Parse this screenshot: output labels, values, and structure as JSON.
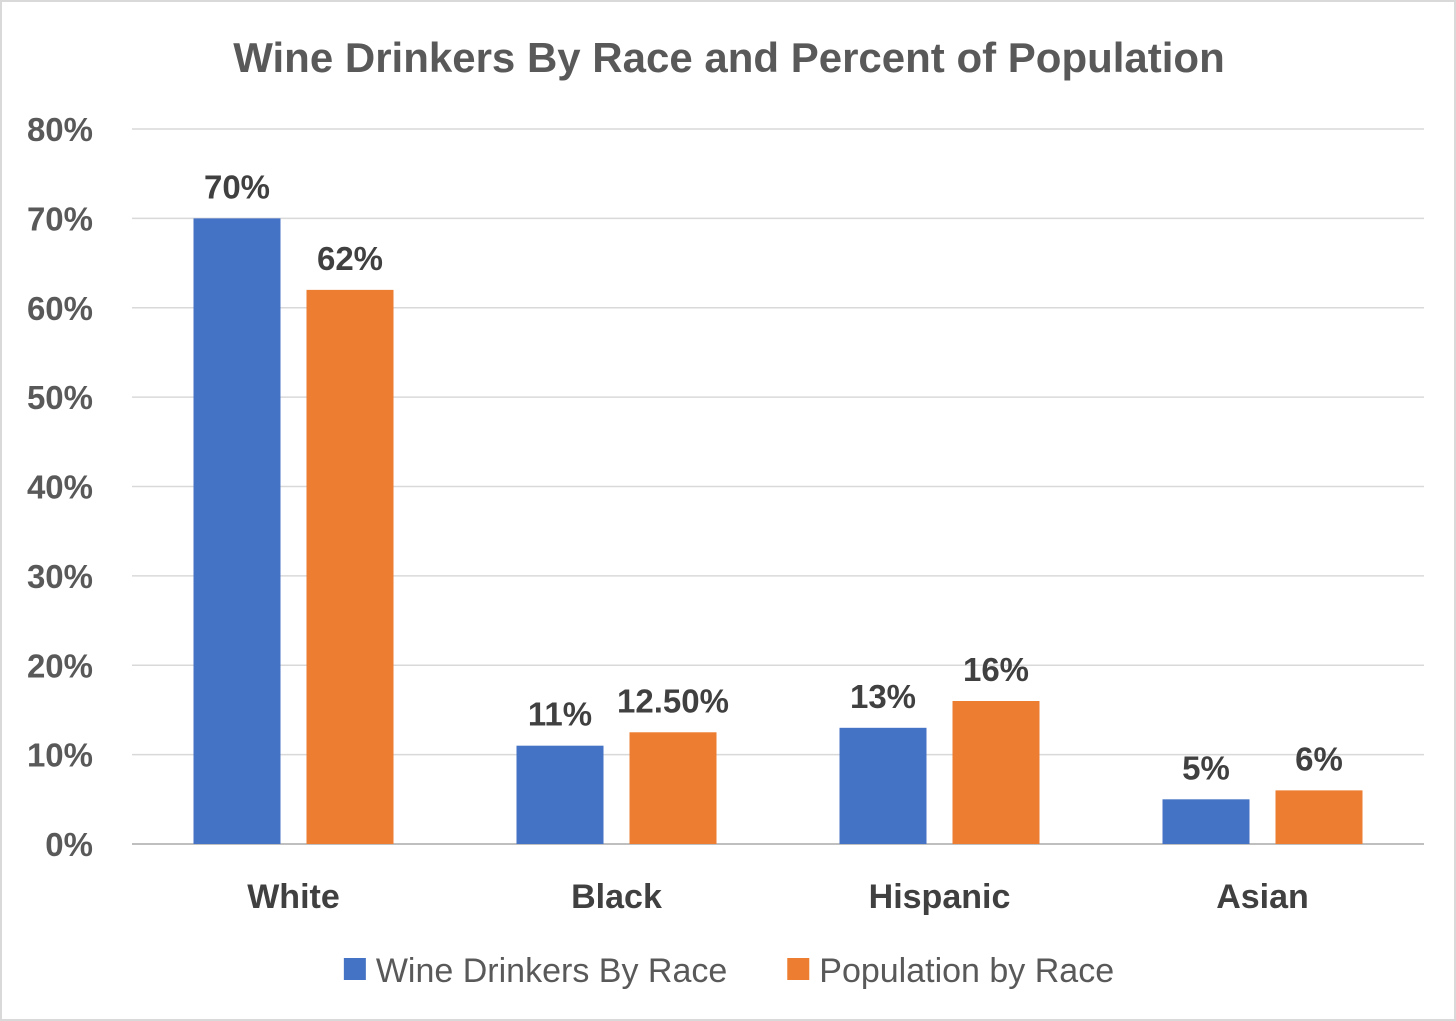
{
  "chart_data": {
    "type": "bar",
    "title": "Wine Drinkers By Race and Percent of Population",
    "categories": [
      "White",
      "Black",
      "Hispanic",
      "Asian"
    ],
    "series": [
      {
        "name": "Wine Drinkers By Race",
        "color": "#4472C4",
        "values": [
          70,
          11,
          13,
          5
        ],
        "labels": [
          "70%",
          "11%",
          "13%",
          "5%"
        ]
      },
      {
        "name": "Population by Race",
        "color": "#ED7D31",
        "values": [
          62,
          12.5,
          16,
          6
        ],
        "labels": [
          "62%",
          "12.50%",
          "16%",
          "6%"
        ]
      }
    ],
    "ylim": [
      0,
      80
    ],
    "yticks": [
      0,
      10,
      20,
      30,
      40,
      50,
      60,
      70,
      80
    ],
    "ytick_labels": [
      "0%",
      "10%",
      "20%",
      "30%",
      "40%",
      "50%",
      "60%",
      "70%",
      "80%"
    ],
    "xlabel": "",
    "ylabel": "",
    "grid": true,
    "legend_position": "bottom"
  }
}
